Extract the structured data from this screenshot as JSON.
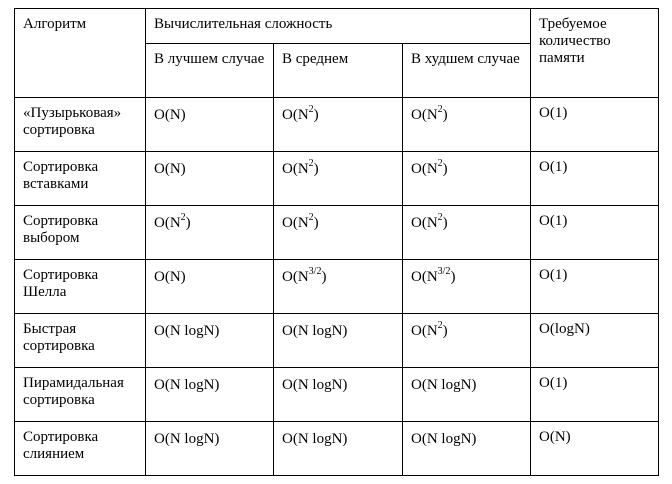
{
  "header": {
    "algorithm": "Алгоритм",
    "complexity": "Вычислительная сложность",
    "memory": "Требуемое количество памяти",
    "best_case": "В лучшем случае",
    "average_case": "В среднем",
    "worst_case": "В худшем случае"
  },
  "rows": [
    {
      "name": "«Пузырьковая» сортировка",
      "best": {
        "base": "O(N",
        "exp": "",
        "close": ")"
      },
      "average": {
        "base": "O(N",
        "exp": "2",
        "close": ")"
      },
      "worst": {
        "base": "O(N",
        "exp": "2",
        "close": ")"
      },
      "memory": "O(1)"
    },
    {
      "name": "Сортировка вставками",
      "best": {
        "base": "O(N",
        "exp": "",
        "close": ")"
      },
      "average": {
        "base": "O(N",
        "exp": "2",
        "close": ")"
      },
      "worst": {
        "base": "O(N",
        "exp": "2",
        "close": ")"
      },
      "memory": "O(1)"
    },
    {
      "name": "Сортировка выбором",
      "best": {
        "base": "O(N",
        "exp": "2",
        "close": ")"
      },
      "average": {
        "base": "O(N",
        "exp": "2",
        "close": ")"
      },
      "worst": {
        "base": "O(N",
        "exp": "2",
        "close": ")"
      },
      "memory": "O(1)"
    },
    {
      "name": "Сортировка Шелла",
      "best": {
        "base": "O(N",
        "exp": "",
        "close": ")"
      },
      "average": {
        "base": "O(N",
        "exp": "3/2",
        "close": ")"
      },
      "worst": {
        "base": "O(N",
        "exp": "3/2",
        "close": ")"
      },
      "memory": "O(1)"
    },
    {
      "name": "Быстрая сортировка",
      "best": {
        "base": "O(N logN",
        "exp": "",
        "close": ")"
      },
      "average": {
        "base": "O(N logN",
        "exp": "",
        "close": ")"
      },
      "worst": {
        "base": "O(N",
        "exp": "2",
        "close": ")"
      },
      "memory": "O(logN)"
    },
    {
      "name": "Пирамидальная сортировка",
      "best": {
        "base": "O(N logN",
        "exp": "",
        "close": ")"
      },
      "average": {
        "base": "O(N logN",
        "exp": "",
        "close": ")"
      },
      "worst": {
        "base": "O(N logN",
        "exp": "",
        "close": ")"
      },
      "memory": "O(1)"
    },
    {
      "name": "Сортировка слиянием",
      "best": {
        "base": "O(N logN",
        "exp": "",
        "close": ")"
      },
      "average": {
        "base": "O(N logN",
        "exp": "",
        "close": ")"
      },
      "worst": {
        "base": "O(N logN",
        "exp": "",
        "close": ")"
      },
      "memory": "O(N)"
    }
  ]
}
